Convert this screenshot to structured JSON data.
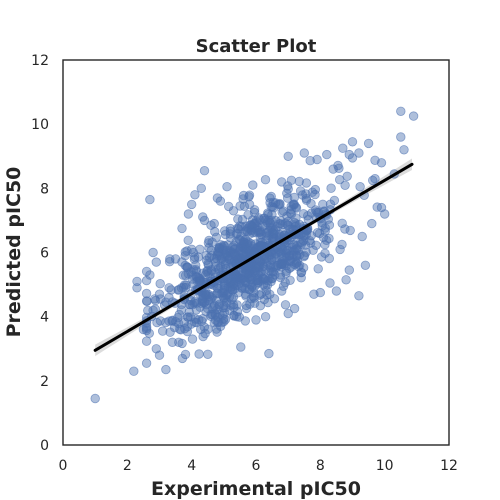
{
  "chart_data": {
    "type": "scatter",
    "title": "Scatter Plot",
    "xlabel": "Experimental pIC50",
    "ylabel": "Predicted pIC50",
    "xlim": [
      0,
      12
    ],
    "ylim": [
      0,
      12
    ],
    "xticks": [
      "0",
      "2",
      "4",
      "6",
      "8",
      "10",
      "12"
    ],
    "yticks": [
      "0",
      "2",
      "4",
      "6",
      "8",
      "10",
      "12"
    ],
    "grid": false,
    "legend": "none",
    "point_color": "#4c72b0",
    "line_color": "#000000",
    "band_color": "#9a9a9a",
    "point_count": 900,
    "regression": {
      "x_start": 1.0,
      "y_start": 2.95,
      "x_end": 10.85,
      "y_end": 8.75,
      "ci_half_width_ends": 0.18,
      "ci_half_width_mid": 0.05
    },
    "points": [
      [
        1.0,
        1.45
      ],
      [
        2.2,
        2.3
      ],
      [
        2.3,
        5.1
      ],
      [
        2.3,
        4.9
      ],
      [
        2.5,
        3.6
      ],
      [
        2.6,
        2.55
      ],
      [
        2.7,
        7.65
      ],
      [
        2.7,
        5.3
      ],
      [
        2.8,
        6.0
      ],
      [
        2.8,
        4.2
      ],
      [
        2.9,
        3.0
      ],
      [
        2.9,
        5.7
      ],
      [
        3.0,
        2.8
      ],
      [
        3.0,
        4.7
      ],
      [
        3.1,
        3.55
      ],
      [
        3.2,
        2.35
      ],
      [
        3.3,
        4.9
      ],
      [
        3.4,
        3.2
      ],
      [
        3.5,
        5.8
      ],
      [
        3.6,
        3.2
      ],
      [
        3.7,
        6.75
      ],
      [
        3.8,
        5.9
      ],
      [
        3.9,
        7.2
      ],
      [
        4.0,
        7.5
      ],
      [
        4.0,
        6.1
      ],
      [
        4.1,
        7.8
      ],
      [
        4.3,
        8.0
      ],
      [
        4.4,
        7.0
      ],
      [
        4.4,
        8.55
      ],
      [
        4.6,
        6.85
      ],
      [
        4.7,
        6.9
      ],
      [
        4.8,
        7.7
      ],
      [
        5.0,
        3.85
      ],
      [
        5.1,
        8.05
      ],
      [
        5.3,
        7.3
      ],
      [
        5.4,
        4.0
      ],
      [
        5.7,
        4.35
      ],
      [
        5.9,
        8.1
      ],
      [
        6.0,
        3.9
      ],
      [
        6.3,
        4.0
      ],
      [
        6.4,
        2.85
      ],
      [
        6.8,
        4.8
      ],
      [
        6.8,
        8.2
      ],
      [
        7.0,
        4.1
      ],
      [
        7.0,
        9.0
      ],
      [
        7.1,
        8.25
      ],
      [
        7.2,
        4.25
      ],
      [
        7.5,
        9.1
      ],
      [
        7.8,
        4.7
      ],
      [
        7.9,
        8.9
      ],
      [
        8.0,
        4.75
      ],
      [
        8.2,
        9.05
      ],
      [
        8.3,
        5.05
      ],
      [
        8.4,
        8.6
      ],
      [
        8.5,
        4.8
      ],
      [
        8.7,
        9.25
      ],
      [
        8.8,
        5.15
      ],
      [
        8.9,
        5.45
      ],
      [
        8.9,
        9.05
      ],
      [
        9.0,
        8.95
      ],
      [
        9.0,
        9.45
      ],
      [
        9.2,
        9.1
      ],
      [
        9.2,
        4.65
      ],
      [
        9.3,
        6.5
      ],
      [
        9.4,
        5.6
      ],
      [
        9.5,
        9.4
      ],
      [
        9.6,
        6.9
      ],
      [
        9.7,
        8.3
      ],
      [
        9.9,
        7.4
      ],
      [
        10.0,
        7.2
      ],
      [
        10.3,
        8.45
      ],
      [
        10.5,
        10.4
      ],
      [
        10.5,
        9.6
      ],
      [
        10.6,
        9.2
      ],
      [
        10.9,
        10.25
      ]
    ]
  }
}
